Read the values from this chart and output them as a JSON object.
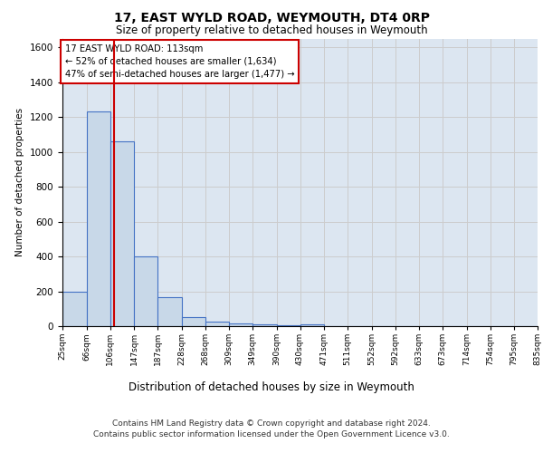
{
  "title": "17, EAST WYLD ROAD, WEYMOUTH, DT4 0RP",
  "subtitle": "Size of property relative to detached houses in Weymouth",
  "xlabel": "Distribution of detached houses by size in Weymouth",
  "ylabel": "Number of detached properties",
  "footer_line1": "Contains HM Land Registry data © Crown copyright and database right 2024.",
  "footer_line2": "Contains public sector information licensed under the Open Government Licence v3.0.",
  "annotation_line1": "17 EAST WYLD ROAD: 113sqm",
  "annotation_line2": "← 52% of detached houses are smaller (1,634)",
  "annotation_line3": "47% of semi-detached houses are larger (1,477) →",
  "property_size": 113,
  "bin_edges": [
    25,
    66,
    106,
    147,
    187,
    228,
    268,
    309,
    349,
    390,
    430,
    471,
    511,
    552,
    592,
    633,
    673,
    714,
    754,
    795,
    835
  ],
  "bar_heights": [
    200,
    1230,
    1060,
    400,
    165,
    50,
    25,
    15,
    10,
    5,
    10,
    0,
    0,
    0,
    0,
    0,
    0,
    0,
    0,
    0
  ],
  "bar_facecolor": "#c8d8e8",
  "bar_edgecolor": "#4472c4",
  "redline_color": "#cc0000",
  "annotation_box_edgecolor": "#cc0000",
  "annotation_box_facecolor": "#ffffff",
  "grid_color": "#cccccc",
  "background_color": "#dce6f1",
  "ylim": [
    0,
    1650
  ],
  "yticks": [
    0,
    200,
    400,
    600,
    800,
    1000,
    1200,
    1400,
    1600
  ]
}
